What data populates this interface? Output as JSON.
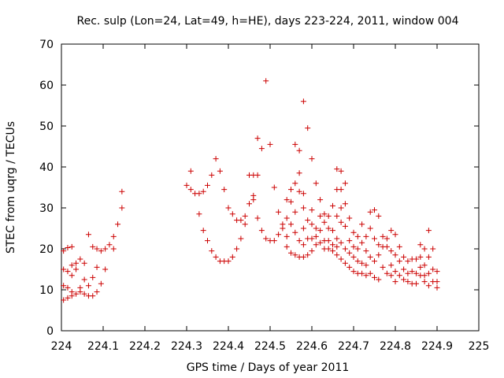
{
  "chart_data": {
    "type": "scatter",
    "title": "Rec. sulp (Lon=24, Lat=49, h=HE), days 223-224, 2011, window 004",
    "xlabel": "GPS time / Days of year 2011",
    "ylabel": "STEC from uqrg / TECUs",
    "xlim": [
      224,
      225
    ],
    "ylim": [
      0,
      70
    ],
    "x_ticks": [
      "224",
      "224.1",
      "224.2",
      "224.3",
      "224.4",
      "224.5",
      "224.6",
      "224.7",
      "224.8",
      "224.9",
      "225"
    ],
    "y_ticks": [
      "0",
      "10",
      "20",
      "30",
      "40",
      "50",
      "60",
      "70"
    ],
    "grid": false,
    "legend": "none",
    "marker": "+",
    "color": "#cc0000",
    "points": [
      [
        224.005,
        19.5
      ],
      [
        224.005,
        15.0
      ],
      [
        224.005,
        11.0
      ],
      [
        224.005,
        7.5
      ],
      [
        224.015,
        20.3
      ],
      [
        224.015,
        14.5
      ],
      [
        224.015,
        10.5
      ],
      [
        224.015,
        8.0
      ],
      [
        224.025,
        20.5
      ],
      [
        224.025,
        16.0
      ],
      [
        224.025,
        13.5
      ],
      [
        224.025,
        9.5
      ],
      [
        224.025,
        8.5
      ],
      [
        224.035,
        16.5
      ],
      [
        224.035,
        15.0
      ],
      [
        224.035,
        9.0
      ],
      [
        224.045,
        17.5
      ],
      [
        224.045,
        10.5
      ],
      [
        224.045,
        9.5
      ],
      [
        224.055,
        16.5
      ],
      [
        224.055,
        12.5
      ],
      [
        224.055,
        9.0
      ],
      [
        224.065,
        23.5
      ],
      [
        224.065,
        11.0
      ],
      [
        224.065,
        8.5
      ],
      [
        224.075,
        20.5
      ],
      [
        224.075,
        13.0
      ],
      [
        224.075,
        8.5
      ],
      [
        224.085,
        20.0
      ],
      [
        224.085,
        15.5
      ],
      [
        224.085,
        9.5
      ],
      [
        224.095,
        19.5
      ],
      [
        224.095,
        11.5
      ],
      [
        224.105,
        20.0
      ],
      [
        224.105,
        15.0
      ],
      [
        224.115,
        21.0
      ],
      [
        224.125,
        23.0
      ],
      [
        224.125,
        20.0
      ],
      [
        224.135,
        26.0
      ],
      [
        224.145,
        34.0
      ],
      [
        224.145,
        30.0
      ],
      [
        224.3,
        35.5
      ],
      [
        224.31,
        39.0
      ],
      [
        224.31,
        34.5
      ],
      [
        224.32,
        33.5
      ],
      [
        224.33,
        33.5
      ],
      [
        224.33,
        28.5
      ],
      [
        224.34,
        34.0
      ],
      [
        224.34,
        24.5
      ],
      [
        224.35,
        35.5
      ],
      [
        224.35,
        22.0
      ],
      [
        224.36,
        38.0
      ],
      [
        224.36,
        19.5
      ],
      [
        224.37,
        42.0
      ],
      [
        224.37,
        18.0
      ],
      [
        224.38,
        39.0
      ],
      [
        224.38,
        17.0
      ],
      [
        224.39,
        34.5
      ],
      [
        224.39,
        17.0
      ],
      [
        224.4,
        30.0
      ],
      [
        224.4,
        17.0
      ],
      [
        224.41,
        28.5
      ],
      [
        224.41,
        18.0
      ],
      [
        224.42,
        27.0
      ],
      [
        224.42,
        20.0
      ],
      [
        224.43,
        27.0
      ],
      [
        224.43,
        22.5
      ],
      [
        224.44,
        28.0
      ],
      [
        224.44,
        26.0
      ],
      [
        224.45,
        31.0
      ],
      [
        224.45,
        38.0
      ],
      [
        224.46,
        33.0
      ],
      [
        224.46,
        38.0
      ],
      [
        224.46,
        32.0
      ],
      [
        224.47,
        47.0
      ],
      [
        224.47,
        38.0
      ],
      [
        224.47,
        27.5
      ],
      [
        224.48,
        44.5
      ],
      [
        224.48,
        24.5
      ],
      [
        224.49,
        61.0
      ],
      [
        224.49,
        22.5
      ],
      [
        224.5,
        45.5
      ],
      [
        224.5,
        22.0
      ],
      [
        224.51,
        35.0
      ],
      [
        224.51,
        22.0
      ],
      [
        224.52,
        29.0
      ],
      [
        224.52,
        23.5
      ],
      [
        224.53,
        26.0
      ],
      [
        224.53,
        25.0
      ],
      [
        224.54,
        32.0
      ],
      [
        224.54,
        27.5
      ],
      [
        224.54,
        23.0
      ],
      [
        224.54,
        20.5
      ],
      [
        224.55,
        34.5
      ],
      [
        224.55,
        31.5
      ],
      [
        224.55,
        26.0
      ],
      [
        224.55,
        19.0
      ],
      [
        224.56,
        45.5
      ],
      [
        224.56,
        36.0
      ],
      [
        224.56,
        29.0
      ],
      [
        224.56,
        24.0
      ],
      [
        224.56,
        18.5
      ],
      [
        224.57,
        44.0
      ],
      [
        224.57,
        38.5
      ],
      [
        224.57,
        34.0
      ],
      [
        224.57,
        22.0
      ],
      [
        224.57,
        18.0
      ],
      [
        224.58,
        56.0
      ],
      [
        224.58,
        33.5
      ],
      [
        224.58,
        30.0
      ],
      [
        224.58,
        25.0
      ],
      [
        224.58,
        21.0
      ],
      [
        224.58,
        18.0
      ],
      [
        224.59,
        49.5
      ],
      [
        224.59,
        27.0
      ],
      [
        224.59,
        22.5
      ],
      [
        224.59,
        18.5
      ],
      [
        224.6,
        42.0
      ],
      [
        224.6,
        29.5
      ],
      [
        224.6,
        26.0
      ],
      [
        224.6,
        22.5
      ],
      [
        224.6,
        19.5
      ],
      [
        224.61,
        36.0
      ],
      [
        224.61,
        25.0
      ],
      [
        224.61,
        23.0
      ],
      [
        224.61,
        21.0
      ],
      [
        224.62,
        32.0
      ],
      [
        224.62,
        28.0
      ],
      [
        224.62,
        24.5
      ],
      [
        224.62,
        21.5
      ],
      [
        224.63,
        28.5
      ],
      [
        224.63,
        26.5
      ],
      [
        224.63,
        22.0
      ],
      [
        224.63,
        20.0
      ],
      [
        224.64,
        28.0
      ],
      [
        224.64,
        25.0
      ],
      [
        224.64,
        22.0
      ],
      [
        224.64,
        20.0
      ],
      [
        224.65,
        30.5
      ],
      [
        224.65,
        24.5
      ],
      [
        224.65,
        21.0
      ],
      [
        224.65,
        19.5
      ],
      [
        224.66,
        39.5
      ],
      [
        224.66,
        34.5
      ],
      [
        224.66,
        28.0
      ],
      [
        224.66,
        22.5
      ],
      [
        224.66,
        20.5
      ],
      [
        224.66,
        18.5
      ],
      [
        224.67,
        39.0
      ],
      [
        224.67,
        34.5
      ],
      [
        224.67,
        30.0
      ],
      [
        224.67,
        26.5
      ],
      [
        224.67,
        21.5
      ],
      [
        224.67,
        17.5
      ],
      [
        224.68,
        36.0
      ],
      [
        224.68,
        31.0
      ],
      [
        224.68,
        25.5
      ],
      [
        224.68,
        20.0
      ],
      [
        224.68,
        16.5
      ],
      [
        224.69,
        27.5
      ],
      [
        224.69,
        22.0
      ],
      [
        224.69,
        19.0
      ],
      [
        224.69,
        15.5
      ],
      [
        224.7,
        24.0
      ],
      [
        224.7,
        20.5
      ],
      [
        224.7,
        18.0
      ],
      [
        224.7,
        14.5
      ],
      [
        224.71,
        23.0
      ],
      [
        224.71,
        20.0
      ],
      [
        224.71,
        17.0
      ],
      [
        224.71,
        14.0
      ],
      [
        224.72,
        26.0
      ],
      [
        224.72,
        21.5
      ],
      [
        224.72,
        16.5
      ],
      [
        224.72,
        14.0
      ],
      [
        224.73,
        23.0
      ],
      [
        224.73,
        19.5
      ],
      [
        224.73,
        16.0
      ],
      [
        224.73,
        13.5
      ],
      [
        224.74,
        29.0
      ],
      [
        224.74,
        25.0
      ],
      [
        224.74,
        18.0
      ],
      [
        224.74,
        14.0
      ],
      [
        224.75,
        29.5
      ],
      [
        224.75,
        22.5
      ],
      [
        224.75,
        17.0
      ],
      [
        224.75,
        13.0
      ],
      [
        224.76,
        28.0
      ],
      [
        224.76,
        21.0
      ],
      [
        224.76,
        18.5
      ],
      [
        224.76,
        12.5
      ],
      [
        224.77,
        23.0
      ],
      [
        224.77,
        20.5
      ],
      [
        224.77,
        15.5
      ],
      [
        224.78,
        22.5
      ],
      [
        224.78,
        20.5
      ],
      [
        224.78,
        14.0
      ],
      [
        224.79,
        24.5
      ],
      [
        224.79,
        19.5
      ],
      [
        224.79,
        16.0
      ],
      [
        224.79,
        13.5
      ],
      [
        224.8,
        23.5
      ],
      [
        224.8,
        18.5
      ],
      [
        224.8,
        14.5
      ],
      [
        224.8,
        12.0
      ],
      [
        224.81,
        20.5
      ],
      [
        224.81,
        17.0
      ],
      [
        224.81,
        13.5
      ],
      [
        224.82,
        18.0
      ],
      [
        224.82,
        15.0
      ],
      [
        224.82,
        12.5
      ],
      [
        224.83,
        17.0
      ],
      [
        224.83,
        14.0
      ],
      [
        224.83,
        12.0
      ],
      [
        224.84,
        17.5
      ],
      [
        224.84,
        14.5
      ],
      [
        224.84,
        11.5
      ],
      [
        224.85,
        17.5
      ],
      [
        224.85,
        14.0
      ],
      [
        224.85,
        11.5
      ],
      [
        224.86,
        21.0
      ],
      [
        224.86,
        18.0
      ],
      [
        224.86,
        15.5
      ],
      [
        224.86,
        13.5
      ],
      [
        224.87,
        20.0
      ],
      [
        224.87,
        16.0
      ],
      [
        224.87,
        13.5
      ],
      [
        224.87,
        12.0
      ],
      [
        224.88,
        24.5
      ],
      [
        224.88,
        18.0
      ],
      [
        224.88,
        14.0
      ],
      [
        224.88,
        11.0
      ],
      [
        224.89,
        20.0
      ],
      [
        224.89,
        15.0
      ],
      [
        224.89,
        12.0
      ],
      [
        224.9,
        14.5
      ],
      [
        224.9,
        12.0
      ],
      [
        224.9,
        10.5
      ]
    ]
  }
}
